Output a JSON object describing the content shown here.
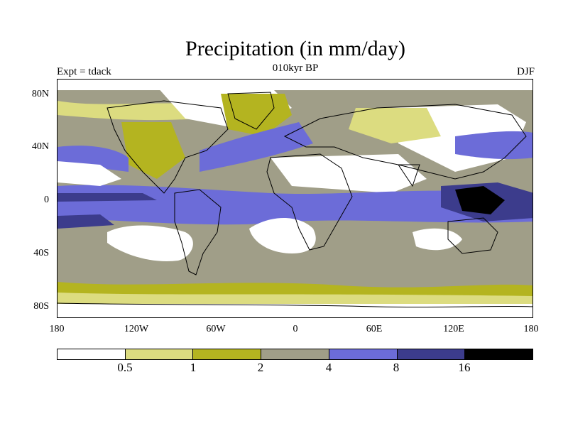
{
  "title": "Precipitation (in mm/day)",
  "subtitle": "010kyr BP",
  "left_label": "Expt = tdack",
  "right_label": "DJF",
  "y_ticks": [
    "80N",
    "40N",
    "0",
    "40S",
    "80S"
  ],
  "x_ticks": [
    "180",
    "120W",
    "60W",
    "0",
    "60E",
    "120E",
    "180"
  ],
  "colorbar": {
    "colors": [
      "#ffffff",
      "#dcdc80",
      "#b4b420",
      "#a09e88",
      "#6c6cd8",
      "#3c3c8c",
      "#000000"
    ],
    "labels": [
      "0.5",
      "1",
      "2",
      "4",
      "8",
      "16"
    ]
  },
  "colors": {
    "white": "#ffffff",
    "lightyellow": "#dcdc80",
    "olive": "#b4b420",
    "gray": "#a09e88",
    "blue": "#6c6cd8",
    "darkblue": "#3c3c8c",
    "black": "#000000"
  }
}
